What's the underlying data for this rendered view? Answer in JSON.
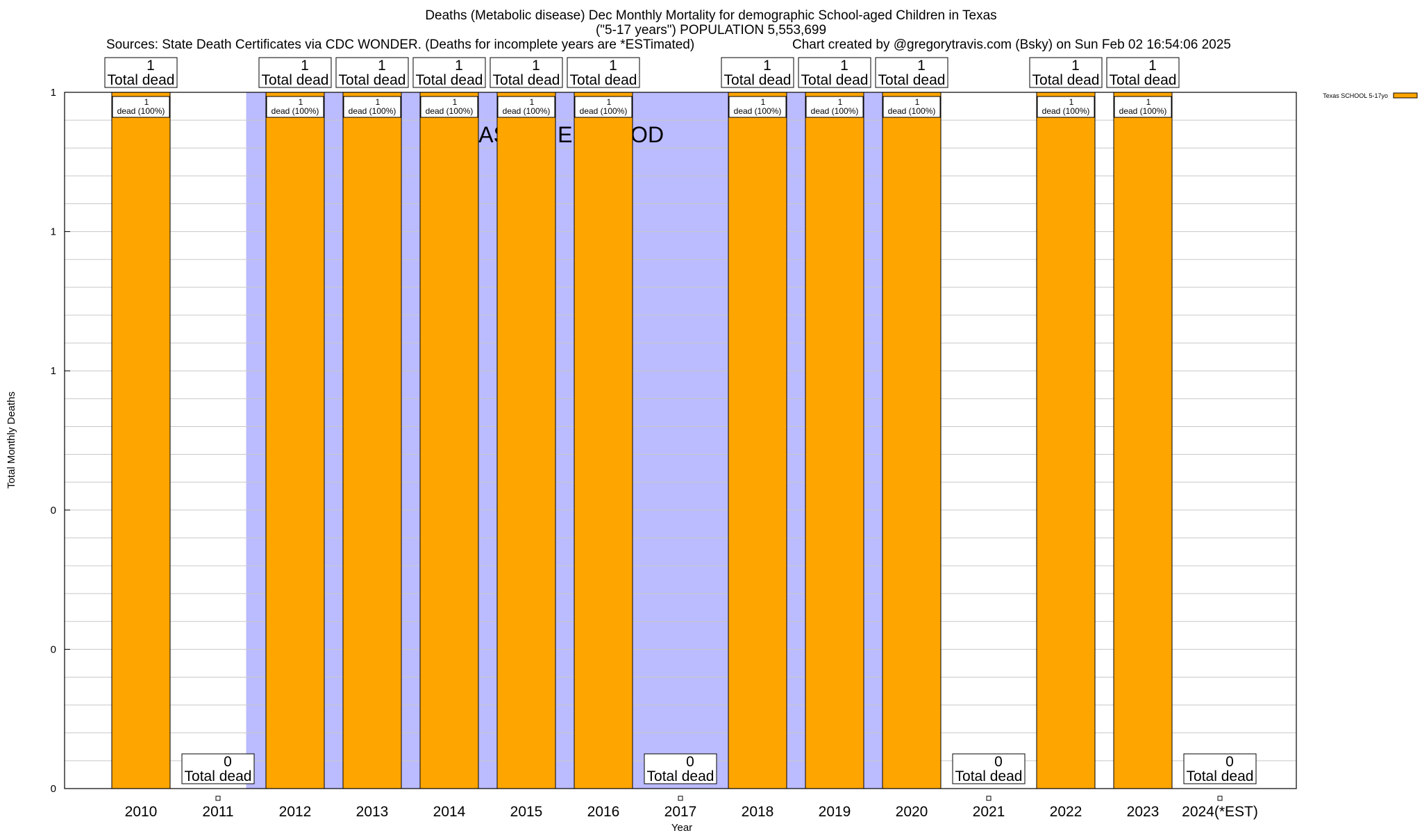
{
  "header": {
    "title_line1": "Deaths (Metabolic disease) Dec Monthly Mortality for demographic School-aged Children in Texas",
    "title_line2": "(\"5-17 years\") POPULATION 5,553,699",
    "sources": "Sources: State Death Certificates via CDC WONDER. (Deaths for incomplete years are *ESTimated)",
    "credit": "Chart created by @gregorytravis.com (Bsky) on Sun Feb 02 16:54:06 2025"
  },
  "chart_data": {
    "type": "bar",
    "title": "Deaths (Metabolic disease) Dec Monthly Mortality for demographic School-aged Children in Texas",
    "xlabel": "Year",
    "ylabel": "Total Monthly Deaths",
    "ylim": [
      0,
      1
    ],
    "y_tick_labels": [
      "0",
      "0",
      "0",
      "1",
      "1",
      "1"
    ],
    "categories": [
      "2010",
      "2011",
      "2012",
      "2013",
      "2014",
      "2015",
      "2016",
      "2017",
      "2018",
      "2019",
      "2020",
      "2021",
      "2022",
      "2023",
      "2024(*EST)"
    ],
    "series": [
      {
        "name": "Texas SCHOOL 5-17yo",
        "values": [
          1,
          0,
          1,
          1,
          1,
          1,
          1,
          0,
          1,
          1,
          1,
          0,
          1,
          1,
          0
        ]
      }
    ],
    "total_labels": [
      "1",
      "0",
      "1",
      "1",
      "1",
      "1",
      "1",
      "0",
      "1",
      "1",
      "1",
      "0",
      "1",
      "1",
      "0"
    ],
    "total_suffix": "Total dead",
    "inner_labels": [
      "dead (100%)",
      "",
      "dead (100%)",
      "dead (100%)",
      "dead (100%)",
      "dead (100%)",
      "dead (100%)",
      "",
      "dead (100%)",
      "dead (100%)",
      "dead (100%)",
      "",
      "dead (100%)",
      "dead (100%)",
      ""
    ],
    "baseline_label": "BASELINE PERIOD",
    "baseline_years": [
      "2012",
      "2013",
      "2014",
      "2015",
      "2016",
      "2017",
      "2018",
      "2019"
    ],
    "legend_position": "top-right",
    "grid": true,
    "colors": {
      "bar": "#ffa500",
      "baseline": "#bbbbff",
      "grid": "#c8c8c8"
    }
  }
}
